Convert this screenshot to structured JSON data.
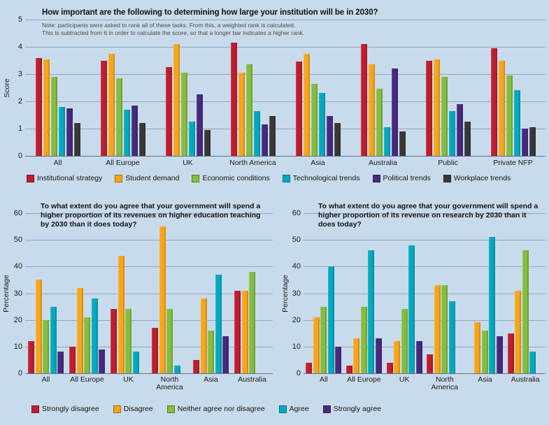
{
  "colors": {
    "background": "#c8dbec",
    "text": "#121212",
    "note_text": "#53453f",
    "gridline": "#95a3b8",
    "axis_line": "#60708a"
  },
  "chart_data": [
    {
      "type": "bar",
      "title": "How important are the following to determining how large your institution will be in 2030?",
      "note_lines": [
        "Note: participants were asked to rank all of these tasks. From this, a weighted rank is calculated.",
        "This is subtracted from 6 in order to calculate the score, so that a longer bar indicates a higher rank."
      ],
      "ylabel": "Score",
      "ylim": [
        0,
        5
      ],
      "ytick_step": 1,
      "grid": true,
      "legend_position": "bottom",
      "categories": [
        "All",
        "All Europe",
        "UK",
        "North America",
        "Asia",
        "Australia",
        "Public",
        "Private NFP"
      ],
      "series": [
        {
          "name": "Institutional strategy",
          "color": "#bf1e2e",
          "values": [
            3.6,
            3.5,
            3.25,
            4.15,
            3.45,
            4.1,
            3.5,
            3.95
          ]
        },
        {
          "name": "Student demand",
          "color": "#f9a51b",
          "values": [
            3.55,
            3.75,
            4.1,
            3.05,
            3.75,
            3.35,
            3.55,
            3.5
          ]
        },
        {
          "name": "Economic conditions",
          "color": "#84bd3f",
          "values": [
            2.9,
            2.85,
            3.05,
            3.35,
            2.65,
            2.45,
            2.9,
            2.95
          ]
        },
        {
          "name": "Technological trends",
          "color": "#00a9bd",
          "values": [
            1.8,
            1.7,
            1.25,
            1.65,
            2.3,
            1.05,
            1.65,
            2.4
          ]
        },
        {
          "name": "Political trends",
          "color": "#47297e",
          "values": [
            1.75,
            1.85,
            2.25,
            1.15,
            1.45,
            3.2,
            1.9,
            1.0
          ]
        },
        {
          "name": "Workplace trends",
          "color": "#383838",
          "values": [
            1.2,
            1.2,
            0.95,
            1.45,
            1.2,
            0.9,
            1.25,
            1.05
          ]
        }
      ]
    },
    {
      "type": "bar",
      "title": "To what extent do you agree that your government will spend a higher proportion of its revenues on higher education teaching by 2030 than it does today?",
      "ylabel": "Percentage",
      "ylim": [
        0,
        60
      ],
      "ytick_step": 10,
      "grid": true,
      "legend_position": "bottom",
      "categories": [
        "All",
        "All Europe",
        "UK",
        "North America",
        "Asia",
        "Australia"
      ],
      "series": [
        {
          "name": "Strongly disagree",
          "color": "#bf1e2e",
          "values": [
            12,
            10,
            24,
            17,
            5,
            31
          ]
        },
        {
          "name": "Disagree",
          "color": "#f9a51b",
          "values": [
            35,
            32,
            44,
            55,
            28,
            31
          ]
        },
        {
          "name": "Neither agree nor disagree",
          "color": "#84bd3f",
          "values": [
            20,
            21,
            24,
            24,
            16,
            38
          ]
        },
        {
          "name": "Agree",
          "color": "#00a9bd",
          "values": [
            25,
            28,
            8,
            3,
            37,
            0
          ]
        },
        {
          "name": "Strongly agree",
          "color": "#47297e",
          "values": [
            8,
            9,
            0,
            0,
            14,
            0
          ]
        }
      ]
    },
    {
      "type": "bar",
      "title": "To what extent do you agree that your government will spend a higher proportion of its revenue on research by 2030 than it does today?",
      "ylabel": "Percentage",
      "ylim": [
        0,
        60
      ],
      "ytick_step": 10,
      "grid": true,
      "legend_position": "bottom",
      "categories": [
        "All",
        "All Europe",
        "UK",
        "North America",
        "Asia",
        "Australia"
      ],
      "series": [
        {
          "name": "Strongly disagree",
          "color": "#bf1e2e",
          "values": [
            4,
            3,
            4,
            7,
            0,
            15
          ]
        },
        {
          "name": "Disagree",
          "color": "#f9a51b",
          "values": [
            21,
            13,
            12,
            33,
            19,
            31
          ]
        },
        {
          "name": "Neither agree nor disagree",
          "color": "#84bd3f",
          "values": [
            25,
            25,
            24,
            33,
            16,
            46
          ]
        },
        {
          "name": "Agree",
          "color": "#00a9bd",
          "values": [
            40,
            46,
            48,
            27,
            51,
            8
          ]
        },
        {
          "name": "Strongly agree",
          "color": "#47297e",
          "values": [
            10,
            13,
            12,
            0,
            14,
            0
          ]
        }
      ]
    }
  ]
}
